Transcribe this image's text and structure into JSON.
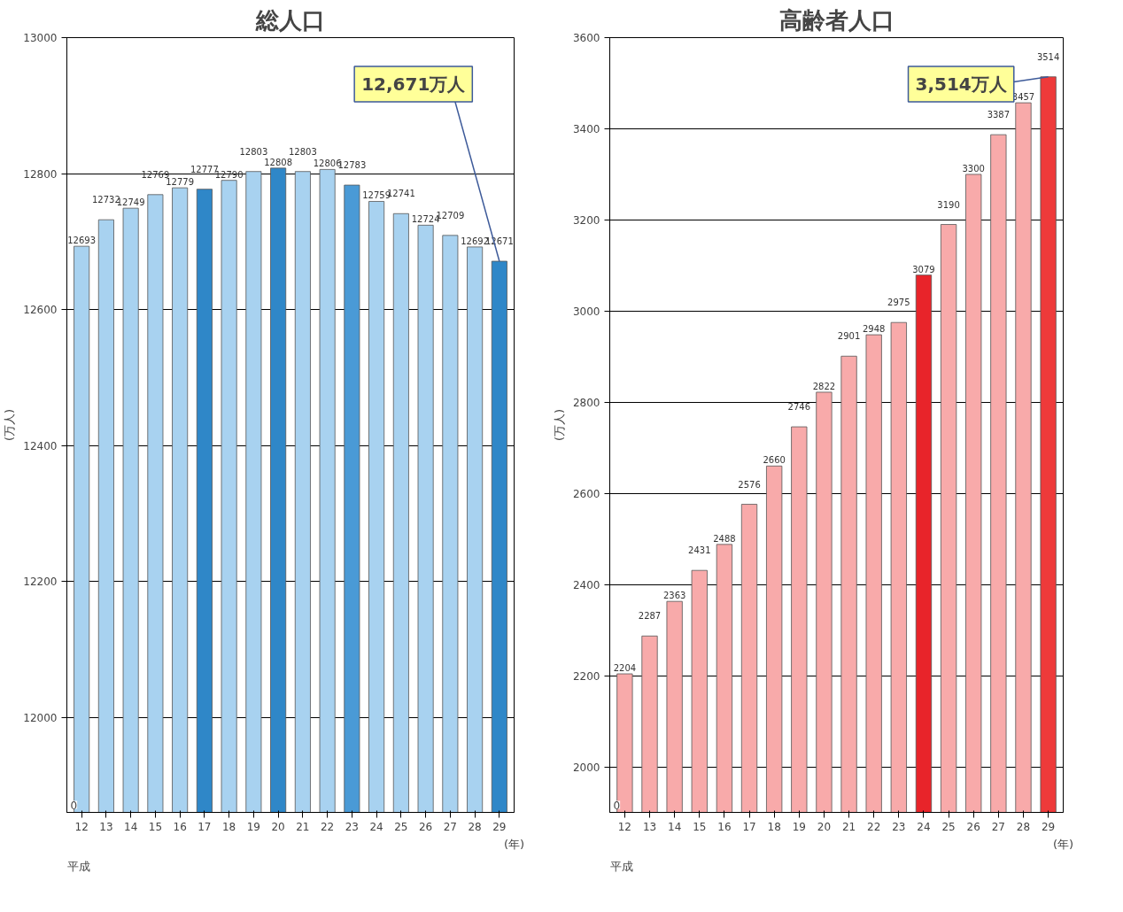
{
  "chart_data": [
    {
      "type": "bar",
      "title": "総人口",
      "ylabel": "(万人)",
      "xlabel": "(年)",
      "categories": [
        "12",
        "13",
        "14",
        "15",
        "16",
        "17",
        "18",
        "19",
        "20",
        "21",
        "22",
        "23",
        "24",
        "25",
        "26",
        "27",
        "28",
        "29"
      ],
      "values": [
        12693,
        12732,
        12749,
        12769,
        12779,
        12777,
        12790,
        12803,
        12808,
        12803,
        12806,
        12783,
        12759,
        12741,
        12724,
        12709,
        12692,
        12671
      ],
      "colors": [
        "#a8d2f0",
        "#a8d2f0",
        "#a8d2f0",
        "#a8d2f0",
        "#a8d2f0",
        "#2f87c8",
        "#a8d2f0",
        "#a8d2f0",
        "#2f87c8",
        "#a8d2f0",
        "#a8d2f0",
        "#4a9ad6",
        "#a8d2f0",
        "#a8d2f0",
        "#a8d2f0",
        "#a8d2f0",
        "#a8d2f0",
        "#2f87c8"
      ],
      "ylim": [
        11860,
        13000
      ],
      "yticks": [
        12000,
        12200,
        12400,
        12600,
        12800,
        13000
      ],
      "grid": "y",
      "data_labels": true,
      "annotations": [
        "0",
        "平成",
        {
          "text": "12,671万人",
          "x": "29",
          "y": 12671
        }
      ]
    },
    {
      "type": "bar",
      "title": "高齢者人口",
      "ylabel": "(万人)",
      "xlabel": "(年)",
      "categories": [
        "12",
        "13",
        "14",
        "15",
        "16",
        "17",
        "18",
        "19",
        "20",
        "21",
        "22",
        "23",
        "24",
        "25",
        "26",
        "27",
        "28",
        "29"
      ],
      "values": [
        2204,
        2287,
        2363,
        2431,
        2488,
        2576,
        2660,
        2746,
        2822,
        2901,
        2948,
        2975,
        3079,
        3190,
        3300,
        3387,
        3457,
        3514
      ],
      "colors": [
        "#f8aaaa",
        "#f8aaaa",
        "#f8aaaa",
        "#f8aaaa",
        "#f8aaaa",
        "#f8aaaa",
        "#f8aaaa",
        "#f8aaaa",
        "#f8aaaa",
        "#f8aaaa",
        "#f8aaaa",
        "#f8aaaa",
        "#e8242a",
        "#f8aaaa",
        "#f8aaaa",
        "#f8aaaa",
        "#f8aaaa",
        "#ee3a3a"
      ],
      "ylim": [
        1900,
        3600
      ],
      "yticks": [
        2000,
        2200,
        2400,
        2600,
        2800,
        3000,
        3200,
        3400,
        3600
      ],
      "grid": "y",
      "data_labels": true,
      "annotations": [
        "0",
        "平成",
        {
          "text": "3,514万人",
          "x": "29",
          "y": 3514
        }
      ]
    }
  ]
}
